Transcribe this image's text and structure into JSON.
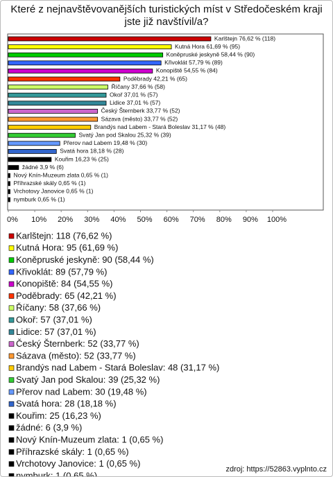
{
  "chart_data": {
    "type": "bar",
    "title": "Které z nejnavštěvovanějších turistických míst v Středočeském kraji jste již navštívil/a?",
    "categories": [
      "Karlštejn",
      "Kutná Hora",
      "Koněpruské jeskyně",
      "Křivoklát",
      "Konopiště",
      "Poděbrady",
      "Říčany",
      "Okoř",
      "Lidice",
      "Český Šternberk",
      "Sázava (město)",
      "Brandýs nad Labem - Stará Boleslav",
      "Svatý Jan pod Skalou",
      "Přerov nad Labem",
      "Svatá hora",
      "Kouřim",
      "žádné",
      "Nový Knín-Muzeum zlata",
      "Příhrazské skály",
      "Vrchotovy Janovice",
      "nymburk"
    ],
    "values": [
      76.62,
      61.69,
      58.44,
      57.79,
      54.55,
      42.21,
      37.66,
      37.01,
      37.01,
      33.77,
      33.77,
      31.17,
      25.32,
      19.48,
      18.18,
      16.23,
      3.9,
      0.65,
      0.65,
      0.65,
      0.65
    ],
    "value_labels": [
      "Karlštejn 76,62 % (118)",
      "Kutná Hora 61,69 % (95)",
      "Koněpruské jeskyně 58,44 % (90)",
      "Křivoklát 57,79 % (89)",
      "Konopiště 54,55 % (84)",
      "Poděbrady 42,21 % (65)",
      "Říčany 37,66 % (58)",
      "Okoř 37,01 % (57)",
      "Lidice 37,01 % (57)",
      "Český Šternberk 33,77 % (52)",
      "Sázava (město) 33,77 % (52)",
      "Brandýs nad Labem - Stará Boleslav 31,17 % (48)",
      "Svatý Jan pod Skalou 25,32 % (39)",
      "Přerov nad Labem 19,48 % (30)",
      "Svatá hora 18,18 % (28)",
      "Kouřim 16,23 % (25)",
      "žádné 3,9 % (6)",
      "Nový Knín-Muzeum zlata 0,65 % (1)",
      "Příhrazské skály 0,65 % (1)",
      "Vrchotovy Janovice 0,65 % (1)",
      "nymburk 0,65 % (1)"
    ],
    "legend_labels": [
      "Karlštejn: 118 (76,62 %)",
      "Kutná Hora: 95 (61,69 %)",
      "Koněpruské jeskyně: 90 (58,44 %)",
      "Křivoklát: 89 (57,79 %)",
      "Konopiště: 84 (54,55 %)",
      "Poděbrady: 65 (42,21 %)",
      "Říčany: 58 (37,66 %)",
      "Okoř: 57 (37,01 %)",
      "Lidice: 57 (37,01 %)",
      "Český Šternberk: 52 (33,77 %)",
      "Sázava (město): 52 (33,77 %)",
      "Brandýs nad Labem - Stará Boleslav: 48 (31,17 %)",
      "Svatý Jan pod Skalou: 39 (25,32 %)",
      "Přerov nad Labem: 30 (19,48 %)",
      "Svatá hora: 28 (18,18 %)",
      "Kouřim: 25 (16,23 %)",
      "žádné: 6 (3,9 %)",
      "Nový Knín-Muzeum zlata: 1 (0,65 %)",
      "Příhrazské skály: 1 (0,65 %)",
      "Vrchotovy Janovice: 1 (0,65 %)",
      "nymburk: 1 (0,65 %)"
    ],
    "colors": [
      "#cc0000",
      "#ffff00",
      "#00cc00",
      "#3366ff",
      "#cc00cc",
      "#ff3300",
      "#ccff66",
      "#339999",
      "#338899",
      "#cc66cc",
      "#ff9933",
      "#ffcc00",
      "#33cc33",
      "#6699ff",
      "#3366cc",
      "#000000",
      "#000000",
      "#000000",
      "#000000",
      "#000000",
      "#000000"
    ],
    "xlim": [
      0,
      100
    ],
    "xticks": [
      {
        "value": 0,
        "label": "0%"
      },
      {
        "value": 10,
        "label": "10%"
      },
      {
        "value": 20,
        "label": "20%"
      },
      {
        "value": 30,
        "label": "30%"
      },
      {
        "value": 40,
        "label": "40%"
      },
      {
        "value": 50,
        "label": "50%"
      },
      {
        "value": 60,
        "label": "60%"
      },
      {
        "value": 70,
        "label": "70%"
      },
      {
        "value": 80,
        "label": "80%"
      },
      {
        "value": 90,
        "label": "90%"
      },
      {
        "value": 100,
        "label": "100%"
      }
    ],
    "source": "zdroj: https://52863.vyplnto.cz"
  }
}
